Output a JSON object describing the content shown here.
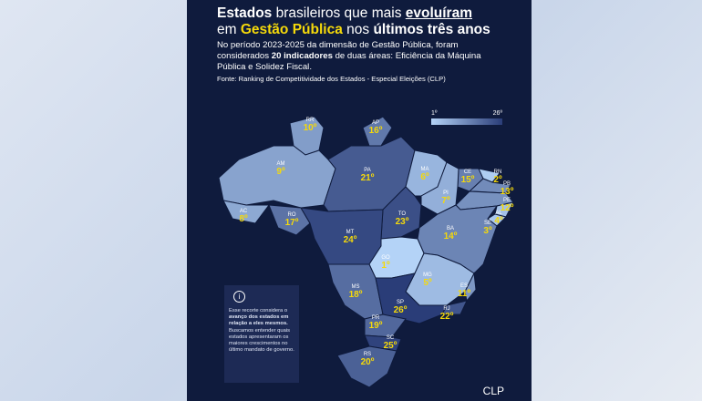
{
  "title": {
    "line1": [
      "Estados",
      " brasileiros que mais ",
      "evoluíram"
    ],
    "line2": [
      "em ",
      "Gestão Pública",
      " nos ",
      "últimos três anos"
    ]
  },
  "subtitle": [
    "No período 2023-2025 da dimensão de Gestão Pública, foram considerados ",
    "20 indicadores",
    " de duas áreas: Eficiência da Máquina Pública e Solidez Fiscal."
  ],
  "source": "Fonte: Ranking de Competitividade dos Estados - Especial Eleições (CLP)",
  "legend": {
    "min_label": "1º",
    "max_label": "26º"
  },
  "note": [
    "Esse recorte considera o ",
    "avanço dos estados em relação a eles mesmos.",
    "Buscamos entender quais estados apresentaram os maiores crescimentos no último mandato de governo."
  ],
  "states": [
    {
      "abbr": "RR",
      "rank": 10,
      "rank_label": "10º"
    },
    {
      "abbr": "AP",
      "rank": 16,
      "rank_label": "16º"
    },
    {
      "abbr": "AM",
      "rank": 9,
      "rank_label": "9º"
    },
    {
      "abbr": "PA",
      "rank": 21,
      "rank_label": "21º"
    },
    {
      "abbr": "MA",
      "rank": 6,
      "rank_label": "6º"
    },
    {
      "abbr": "CE",
      "rank": 15,
      "rank_label": "15º"
    },
    {
      "abbr": "RN",
      "rank": 2,
      "rank_label": "2º"
    },
    {
      "abbr": "PB",
      "rank": 13,
      "rank_label": "13º"
    },
    {
      "abbr": "PE",
      "rank": 12,
      "rank_label": "12º"
    },
    {
      "abbr": "AL",
      "rank": 4,
      "rank_label": "4º"
    },
    {
      "abbr": "SE",
      "rank": 3,
      "rank_label": "3º"
    },
    {
      "abbr": "PI",
      "rank": 7,
      "rank_label": "7º"
    },
    {
      "abbr": "TO",
      "rank": 23,
      "rank_label": "23º"
    },
    {
      "abbr": "BA",
      "rank": 14,
      "rank_label": "14º"
    },
    {
      "abbr": "AC",
      "rank": 8,
      "rank_label": "8º"
    },
    {
      "abbr": "RO",
      "rank": 17,
      "rank_label": "17º"
    },
    {
      "abbr": "MT",
      "rank": 24,
      "rank_label": "24º"
    },
    {
      "abbr": "GO",
      "rank": 1,
      "rank_label": "1º"
    },
    {
      "abbr": "MG",
      "rank": 5,
      "rank_label": "5º"
    },
    {
      "abbr": "MS",
      "rank": 18,
      "rank_label": "18º"
    },
    {
      "abbr": "ES",
      "rank": 11,
      "rank_label": "11º"
    },
    {
      "abbr": "SP",
      "rank": 26,
      "rank_label": "26º"
    },
    {
      "abbr": "RJ",
      "rank": 22,
      "rank_label": "22º"
    },
    {
      "abbr": "PR",
      "rank": 19,
      "rank_label": "19º"
    },
    {
      "abbr": "SC",
      "rank": 25,
      "rank_label": "25º"
    },
    {
      "abbr": "RS",
      "rank": 20,
      "rank_label": "20º"
    }
  ],
  "logo": "CLP"
}
